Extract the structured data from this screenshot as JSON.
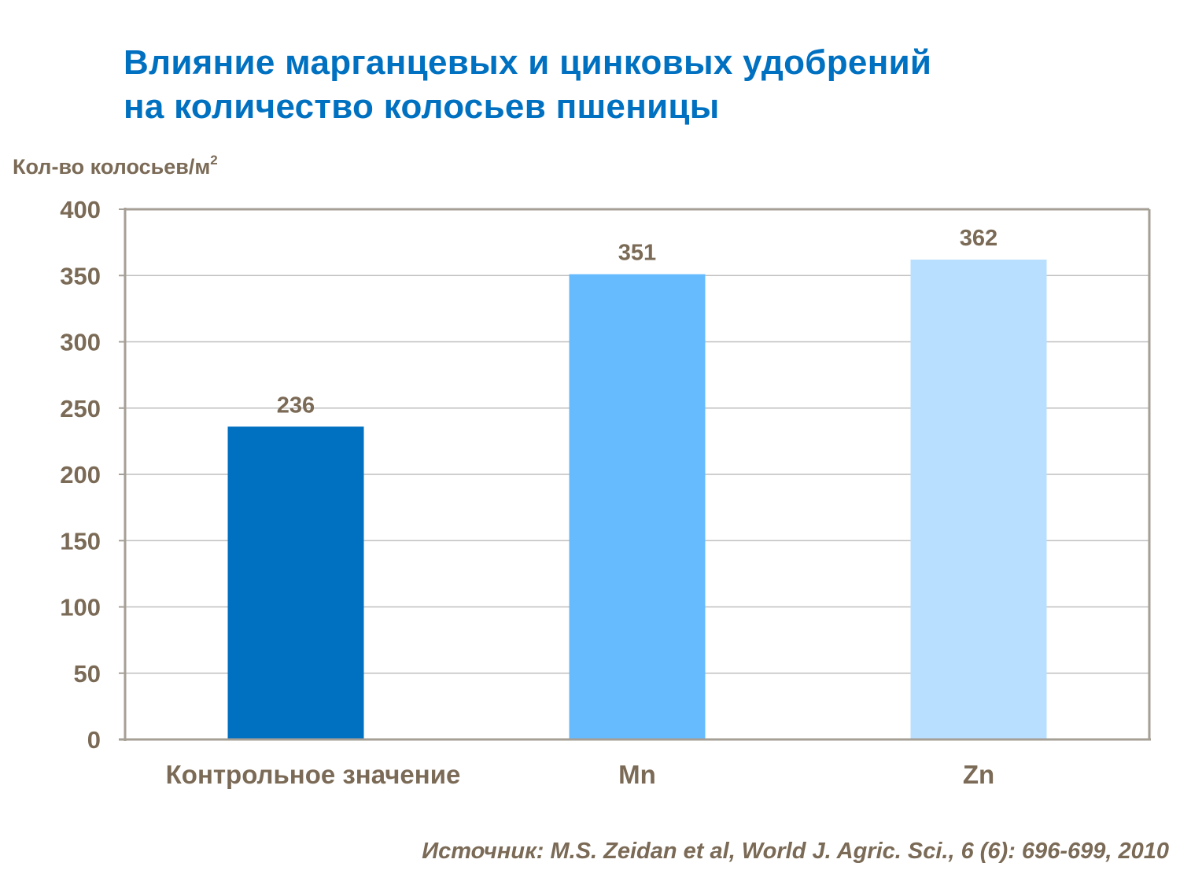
{
  "chart_data": {
    "type": "bar",
    "title": "Влияние марганцевых и цинковых удобрений на количество колосьев пшеницы",
    "title_lines": [
      "Влияние марганцевых и цинковых удобрений",
      "на количество колосьев пшеницы"
    ],
    "ylabel": "Кол-во колосьев/м",
    "ylabel_sup": "2",
    "xlabel": "",
    "categories": [
      "Контрольное значение",
      "Mn",
      "Zn"
    ],
    "values": [
      236,
      351,
      362
    ],
    "colors": [
      "#0070C0",
      "#66BBFF",
      "#B8DFFF"
    ],
    "ylim": [
      0,
      400
    ],
    "yticks": [
      0,
      50,
      100,
      150,
      200,
      250,
      300,
      350,
      400
    ],
    "grid": true,
    "data_labels": true,
    "legend": "none"
  },
  "source": "Источник: M.S. Zeidan et al, World J. Agric. Sci., 6 (6): 696-699, 2010"
}
